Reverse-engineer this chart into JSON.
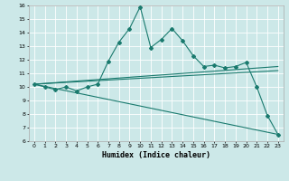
{
  "xlabel": "Humidex (Indice chaleur)",
  "background_color": "#cce8e8",
  "grid_color": "#ffffff",
  "line_color": "#1a7a6e",
  "xlim": [
    -0.5,
    23.5
  ],
  "ylim": [
    6,
    16
  ],
  "xticks": [
    0,
    1,
    2,
    3,
    4,
    5,
    6,
    7,
    8,
    9,
    10,
    11,
    12,
    13,
    14,
    15,
    16,
    17,
    18,
    19,
    20,
    21,
    22,
    23
  ],
  "yticks": [
    6,
    7,
    8,
    9,
    10,
    11,
    12,
    13,
    14,
    15,
    16
  ],
  "series1_x": [
    0,
    1,
    2,
    3,
    4,
    5,
    6,
    7,
    8,
    9,
    10,
    11,
    12,
    13,
    14,
    15,
    16,
    17,
    18,
    19,
    20,
    21,
    22,
    23
  ],
  "series1_y": [
    10.2,
    10.0,
    9.8,
    10.0,
    9.7,
    10.0,
    10.2,
    11.9,
    13.3,
    14.3,
    15.9,
    12.9,
    13.5,
    14.3,
    13.4,
    12.3,
    11.5,
    11.6,
    11.4,
    11.5,
    11.8,
    10.0,
    7.9,
    6.5
  ],
  "series2_x": [
    0,
    23
  ],
  "series2_y": [
    10.2,
    6.5
  ],
  "series3_x": [
    0,
    23
  ],
  "series3_y": [
    10.2,
    11.5
  ],
  "series4_x": [
    0,
    23
  ],
  "series4_y": [
    10.2,
    11.2
  ],
  "tick_fontsize": 4.5,
  "xlabel_fontsize": 6.0,
  "lw": 0.8,
  "ms": 2.0
}
